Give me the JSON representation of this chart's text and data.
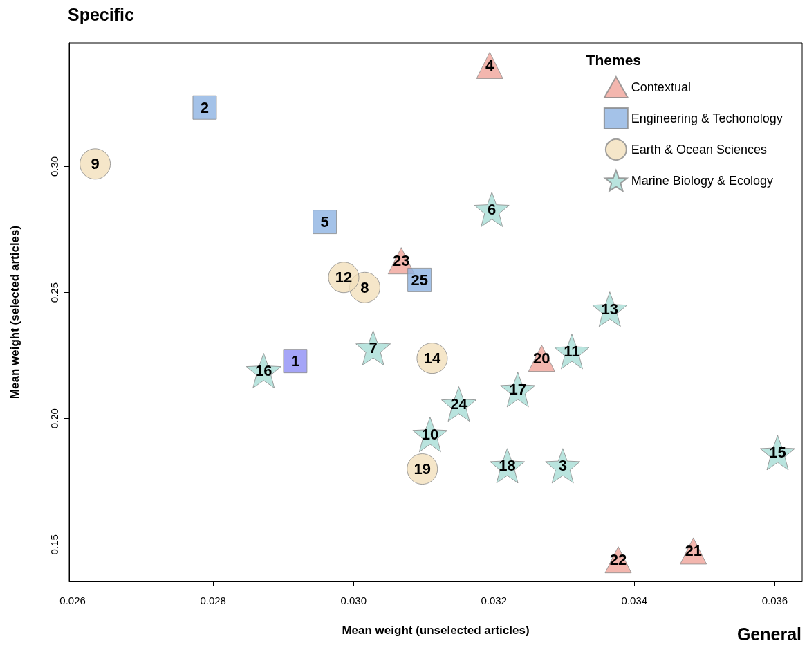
{
  "chart_data": {
    "type": "scatter",
    "xlabel": "Mean weight (unselected articles)",
    "ylabel": "Mean weight (selected articles)",
    "legend_title": "Themes",
    "legend": "top right",
    "grid": false,
    "annotations": [
      "Specific",
      "General",
      {
        "text": "4",
        "x": 0.03194,
        "y": 0.3401
      },
      {
        "text": "20",
        "x": 0.03268,
        "y": 0.2239
      },
      {
        "text": "21",
        "x": 0.03484,
        "y": 0.1475
      },
      {
        "text": "22",
        "x": 0.03377,
        "y": 0.144
      },
      {
        "text": "23",
        "x": 0.03068,
        "y": 0.2626
      },
      {
        "text": "1",
        "x": 0.02917,
        "y": 0.2228
      },
      {
        "text": "2",
        "x": 0.02788,
        "y": 0.3234
      },
      {
        "text": "5",
        "x": 0.02959,
        "y": 0.278
      },
      {
        "text": "25",
        "x": 0.03094,
        "y": 0.255
      },
      {
        "text": "8",
        "x": 0.03016,
        "y": 0.252
      },
      {
        "text": "9",
        "x": 0.02632,
        "y": 0.301
      },
      {
        "text": "12",
        "x": 0.02986,
        "y": 0.256
      },
      {
        "text": "14",
        "x": 0.03112,
        "y": 0.2239
      },
      {
        "text": "19",
        "x": 0.03098,
        "y": 0.18
      },
      {
        "text": "3",
        "x": 0.03298,
        "y": 0.1813
      },
      {
        "text": "6",
        "x": 0.03197,
        "y": 0.283
      },
      {
        "text": "7",
        "x": 0.03028,
        "y": 0.228
      },
      {
        "text": "10",
        "x": 0.03109,
        "y": 0.1937
      },
      {
        "text": "11",
        "x": 0.03311,
        "y": 0.2266
      },
      {
        "text": "13",
        "x": 0.03365,
        "y": 0.2434
      },
      {
        "text": "15",
        "x": 0.03604,
        "y": 0.1865
      },
      {
        "text": "16",
        "x": 0.02872,
        "y": 0.219
      },
      {
        "text": "17",
        "x": 0.03234,
        "y": 0.2115
      },
      {
        "text": "18",
        "x": 0.03219,
        "y": 0.1813
      },
      {
        "text": "24",
        "x": 0.0315,
        "y": 0.2058
      }
    ],
    "xlim": [
      0.02595,
      0.03639
    ],
    "ylim": [
      0.1354,
      0.349
    ],
    "xticks": [
      {
        "value": 0.026,
        "label": "0.026"
      },
      {
        "value": 0.028,
        "label": "0.028"
      },
      {
        "value": 0.03,
        "label": "0.030"
      },
      {
        "value": 0.032,
        "label": "0.032"
      },
      {
        "value": 0.034,
        "label": "0.034"
      },
      {
        "value": 0.036,
        "label": "0.036"
      }
    ],
    "yticks": [
      {
        "value": 0.15,
        "label": "0.15"
      },
      {
        "value": 0.2,
        "label": "0.20"
      },
      {
        "value": 0.25,
        "label": "0.25"
      },
      {
        "value": 0.3,
        "label": "0.30"
      }
    ],
    "series": [
      {
        "name": "Contextual",
        "color": "#f0a49a",
        "marker": "triangle",
        "x": [
          0.03194,
          0.03268,
          0.03484,
          0.03377,
          0.03068
        ],
        "values": [
          0.3401,
          0.2239,
          0.1475,
          0.144,
          0.2626
        ]
      },
      {
        "name": "Engineering & Techonology",
        "color": "#8db3e2",
        "marker": "square",
        "colors": [
          "#8f8ff5",
          "#8db3e2",
          "#8db3e2",
          "#8db3e2"
        ],
        "x": [
          0.02917,
          0.02788,
          0.02959,
          0.03094
        ],
        "values": [
          0.2228,
          0.3234,
          0.278,
          0.255
        ]
      },
      {
        "name": "Earth & Ocean Sciences",
        "color": "#f3e0bb",
        "marker": "circle",
        "x": [
          0.03016,
          0.02632,
          0.02986,
          0.03112,
          0.03098
        ],
        "values": [
          0.252,
          0.301,
          0.256,
          0.2239,
          0.18
        ]
      },
      {
        "name": "Marine Biology & Ecology",
        "color": "#a8ddd6",
        "marker": "star",
        "x": [
          0.03298,
          0.03197,
          0.03028,
          0.03109,
          0.03311,
          0.03365,
          0.03604,
          0.02872,
          0.03234,
          0.03219,
          0.0315
        ],
        "values": [
          0.1813,
          0.283,
          0.228,
          0.1937,
          0.2266,
          0.2434,
          0.1865,
          0.219,
          0.2115,
          0.1813,
          0.2058
        ]
      }
    ]
  }
}
